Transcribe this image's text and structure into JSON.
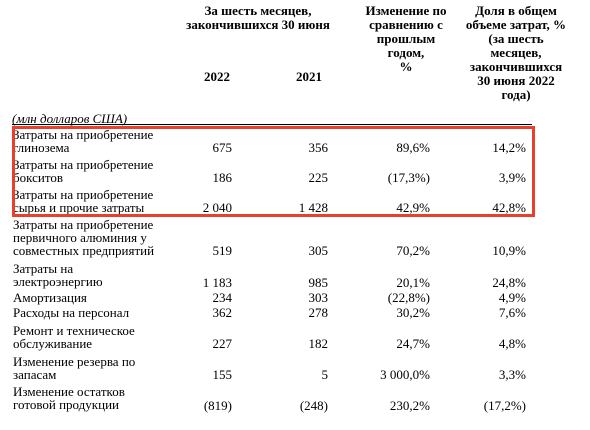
{
  "header": {
    "period_title": "За шесть месяцев,\nзакончившихся 30 июня",
    "year_2022": "2022",
    "year_2021": "2021",
    "change_title": "Изменение по\nсравнению с\nпрошлым\nгодом,\n%",
    "share_title": "Доля в общем\nобъеме затрат, %\n(за шесть\nмесяцев,\nзакончившихся\n30 июня 2022\nгода)"
  },
  "units": "(млн долларов США)",
  "highlight_color": "#e8402a",
  "rows": [
    {
      "label": "Затраты на приобретение\nглинозема",
      "v2022": "675",
      "v2021": "356",
      "change": "89,6%",
      "share": "14,2%"
    },
    {
      "label": "Затраты на приобретение\nбокситов",
      "v2022": "186",
      "v2021": "225",
      "change": "(17,3%)",
      "share": "3,9%"
    },
    {
      "label": "Затраты на приобретение\nсырья и прочие затраты",
      "v2022": "2 040",
      "v2021": "1 428",
      "change": "42,9%",
      "share": "42,8%"
    },
    {
      "label": "Затраты на приобретение\nпервичного алюминия у\nсовместных предприятий",
      "v2022": "519",
      "v2021": "305",
      "change": "70,2%",
      "share": "10,9%"
    },
    {
      "label": "Затраты на\nэлектроэнергию",
      "v2022": "1 183",
      "v2021": "985",
      "change": "20,1%",
      "share": "24,8%"
    },
    {
      "label": "Амортизация",
      "v2022": "234",
      "v2021": "303",
      "change": "(22,8%)",
      "share": "4,9%"
    },
    {
      "label": "Расходы на персонал",
      "v2022": "362",
      "v2021": "278",
      "change": "30,2%",
      "share": "7,6%"
    },
    {
      "label": "Ремонт и техническое\nобслуживание",
      "v2022": "227",
      "v2021": "182",
      "change": "24,7%",
      "share": "4,8%"
    },
    {
      "label": "Изменение резерва по\nзапасам",
      "v2022": "155",
      "v2021": "5",
      "change": "3 000,0%",
      "share": "3,3%"
    },
    {
      "label": "Изменение остатков\nготовой продукции",
      "v2022": "(819)",
      "v2021": "(248)",
      "change": "230,2%",
      "share": "(17,2%)"
    }
  ]
}
